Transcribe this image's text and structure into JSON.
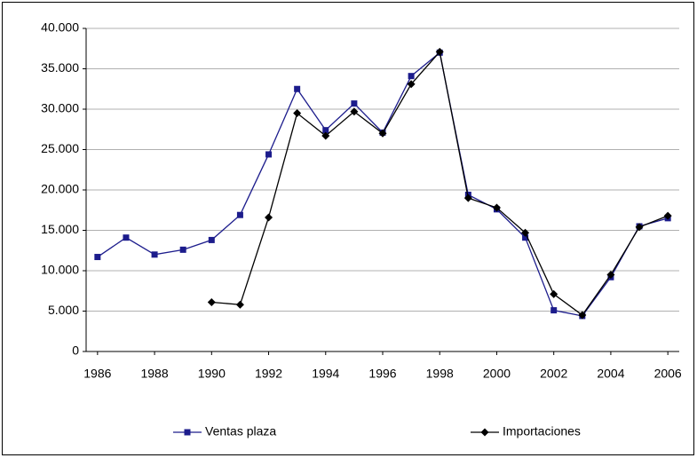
{
  "chart_data": {
    "type": "line",
    "x": [
      1986,
      1987,
      1988,
      1989,
      1990,
      1991,
      1992,
      1993,
      1994,
      1995,
      1996,
      1997,
      1998,
      1999,
      2000,
      2001,
      2002,
      2003,
      2004,
      2005,
      2006
    ],
    "xlim": [
      1985.6,
      2006.4
    ],
    "xticks": [
      1986,
      1988,
      1990,
      1992,
      1994,
      1996,
      1998,
      2000,
      2002,
      2004,
      2006
    ],
    "ylim": [
      0,
      40000
    ],
    "yticks": [
      0,
      {
        "value": 5000,
        "label": "5.000"
      },
      {
        "value": 10000,
        "label": "10.000"
      },
      {
        "value": 15000,
        "label": "15.000"
      },
      {
        "value": 20000,
        "label": "20.000"
      },
      {
        "value": 25000,
        "label": "25.000"
      },
      {
        "value": 30000,
        "label": "30.000"
      },
      {
        "value": 35000,
        "label": "35.000"
      },
      {
        "value": 40000,
        "label": "40.000"
      }
    ],
    "grid": true,
    "legend": "bottom",
    "series": [
      {
        "name": "Ventas plaza",
        "color": "#1c1c8c",
        "marker": "square",
        "values": [
          11700,
          14100,
          12000,
          12600,
          13800,
          16900,
          24400,
          32500,
          27400,
          30700,
          27100,
          34100,
          37000,
          19400,
          17600,
          14100,
          5100,
          4400,
          9200,
          15500,
          16500
        ]
      },
      {
        "name": "Importaciones",
        "color": "#000000",
        "marker": "diamond",
        "values": [
          null,
          null,
          null,
          null,
          6100,
          5800,
          16600,
          29500,
          26700,
          29700,
          27000,
          33100,
          37100,
          19000,
          17800,
          14700,
          7100,
          4500,
          9500,
          15400,
          16800
        ]
      }
    ]
  }
}
